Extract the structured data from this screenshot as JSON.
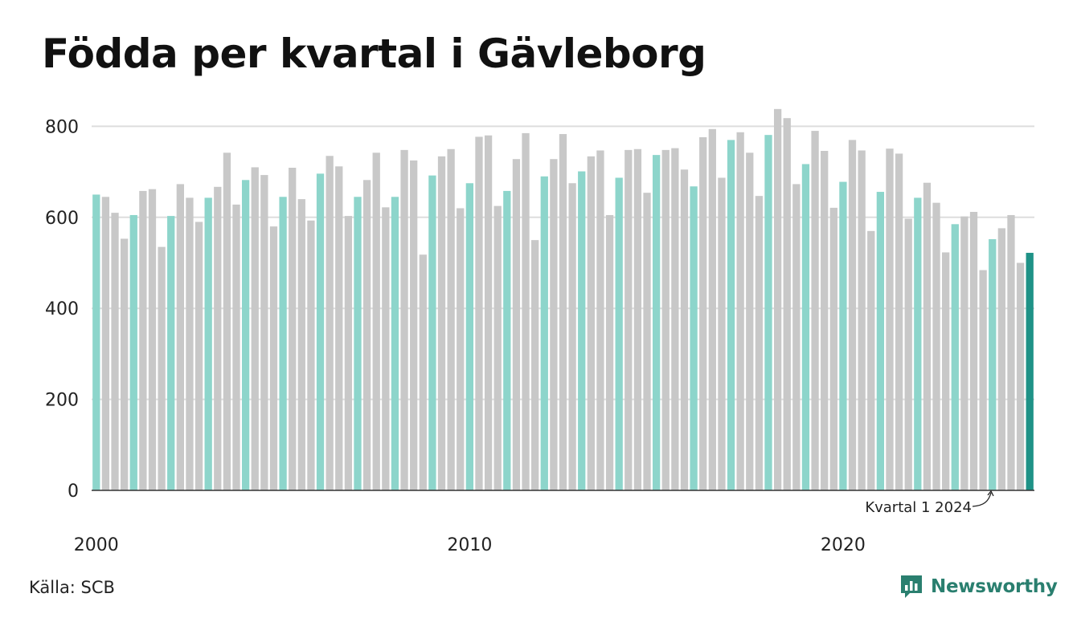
{
  "title": "Födda per kvartal i Gävleborg",
  "source": "Källa: SCB",
  "brand": "Newsworthy",
  "colors": {
    "q1": "#8dd5cb",
    "other": "#c8c8c8",
    "latest": "#1f9287",
    "grid": "#dddddd",
    "brand": "#2a7f6f"
  },
  "chart_data": {
    "type": "bar",
    "title": "Födda per kvartal i Gävleborg",
    "xlabel": "",
    "ylabel": "",
    "ylim": [
      0,
      850
    ],
    "yticks": [
      0,
      200,
      400,
      600,
      800
    ],
    "xtick_labels": [
      "2000",
      "2010",
      "2020"
    ],
    "grid": true,
    "annotation": {
      "text": "Kvartal 1 2024"
    },
    "start_year": 2000,
    "values": [
      650,
      645,
      610,
      553,
      605,
      658,
      662,
      535,
      603,
      673,
      643,
      590,
      643,
      667,
      742,
      628,
      682,
      710,
      693,
      580,
      645,
      709,
      640,
      593,
      696,
      735,
      712,
      603,
      645,
      682,
      742,
      622,
      645,
      748,
      725,
      518,
      692,
      734,
      750,
      620,
      675,
      777,
      780,
      625,
      658,
      728,
      785,
      550,
      690,
      728,
      783,
      675,
      701,
      734,
      747,
      605,
      687,
      748,
      750,
      654,
      737,
      748,
      752,
      705,
      668,
      776,
      794,
      687,
      770,
      787,
      742,
      647,
      781,
      838,
      818,
      673,
      717,
      790,
      746,
      621,
      678,
      770,
      747,
      570,
      656,
      751,
      740,
      597,
      643,
      676,
      632,
      523,
      585,
      602,
      612,
      484,
      552,
      576,
      605,
      500,
      522
    ]
  }
}
